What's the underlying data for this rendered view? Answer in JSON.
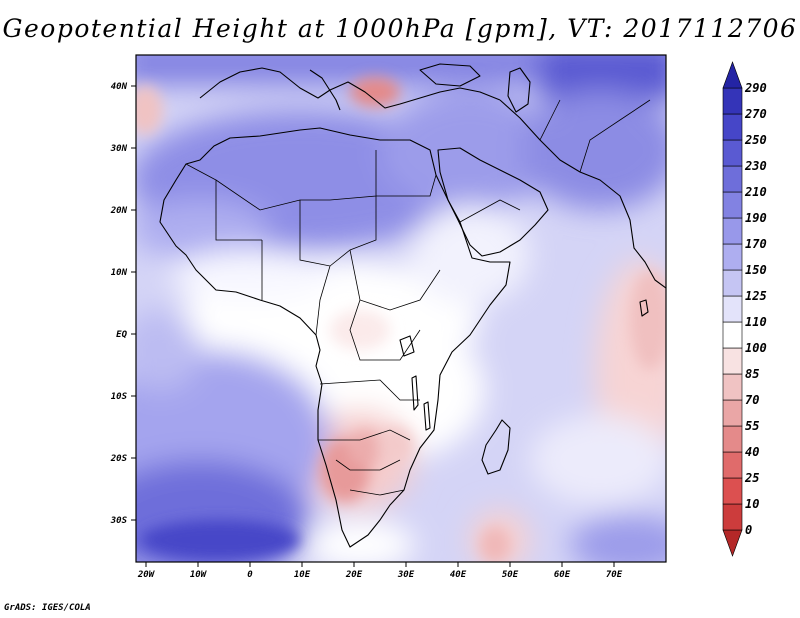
{
  "title": "Geopotential Height at 1000hPa [gpm], VT: 2017112706",
  "credit": "GrADS: IGES/COLA",
  "x_ticks": [
    "20W",
    "10W",
    "0",
    "10E",
    "20E",
    "30E",
    "40E",
    "50E",
    "60E",
    "70E"
  ],
  "y_ticks": [
    "40N",
    "30N",
    "20N",
    "10N",
    "EQ",
    "10S",
    "20S",
    "30S"
  ],
  "colorbar": {
    "levels": [
      "0",
      "10",
      "25",
      "40",
      "55",
      "70",
      "85",
      "100",
      "110",
      "125",
      "150",
      "170",
      "190",
      "210",
      "230",
      "250",
      "270",
      "290"
    ],
    "colors": [
      "#b42828",
      "#cc3c3c",
      "#dc5050",
      "#e06b6b",
      "#e48a8a",
      "#eaa6a6",
      "#f0c3c3",
      "#f8e2e2",
      "#ffffff",
      "#e3e3fa",
      "#c5c5f3",
      "#aeaef0",
      "#9898ea",
      "#8282e2",
      "#6e6eda",
      "#5a5ad2",
      "#4646c8",
      "#3434b8",
      "#2424a4"
    ]
  },
  "map_extent": {
    "lon": [
      -22,
      80
    ],
    "lat": [
      -37,
      45
    ]
  }
}
